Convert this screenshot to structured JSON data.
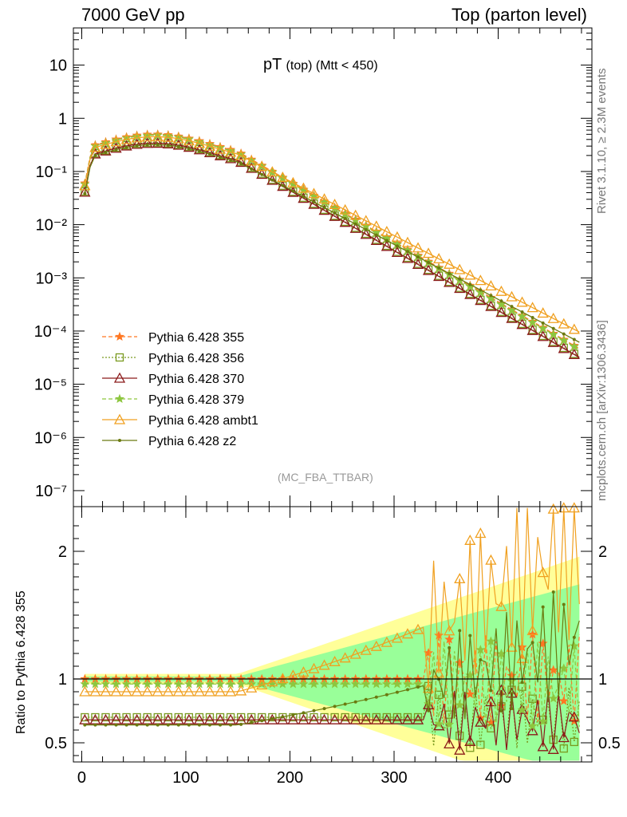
{
  "header": {
    "left": "7000 GeV pp",
    "right": "Top (parton level)",
    "side_top": "Rivet 3.1.10, ≥ 2.3M events",
    "side_bottom": "mcplots.cern.ch [arXiv:1306.3436]"
  },
  "chart_data": {
    "type": "line",
    "title_main": "pT",
    "title_sub": "(top) (Mtt < 450)",
    "analysis": "(MC_FBA_TTBAR)",
    "xlabel": "",
    "ylabel": "",
    "xlim": [
      -8,
      490
    ],
    "ylim": [
      5e-08,
      50
    ],
    "yscale": "log",
    "grid": false,
    "legend_position": "bottom-left",
    "x_ticks": [
      0,
      100,
      200,
      300,
      400
    ],
    "y_ticks": [
      "10",
      "1",
      "10^-1",
      "10^-2",
      "10^-3",
      "10^-4",
      "10^-5",
      "10^-6",
      "10^-7"
    ],
    "ratio": {
      "ylabel": "Ratio to Pythia 6.428 355",
      "ylim": [
        0.35,
        2.35
      ],
      "y_ticks": [
        "0.5",
        "1",
        "2"
      ]
    },
    "bands": {
      "yellow_color": "#ffff99",
      "green_color": "#99ff99"
    },
    "series": [
      {
        "name": "Pythia 6.428 355",
        "color": "#ff7722",
        "marker": "star",
        "dash": "5,3",
        "peak": 0.5,
        "tail_break": 150,
        "tail_slope": 0.026,
        "tail_end": 1.5e-05
      },
      {
        "name": "Pythia 6.428 356",
        "color": "#7a9a20",
        "marker": "square",
        "dash": "2,2",
        "peak": 0.35,
        "tail_break": 150,
        "tail_slope": 0.026,
        "tail_end": 1.8e-05
      },
      {
        "name": "Pythia 6.428 370",
        "color": "#8b1a1a",
        "marker": "triangle",
        "dash": "",
        "peak": 0.34,
        "tail_break": 150,
        "tail_slope": 0.026,
        "tail_end": 1e-05
      },
      {
        "name": "Pythia 6.428 379",
        "color": "#8dc63f",
        "marker": "star",
        "dash": "5,3",
        "peak": 0.48,
        "tail_break": 150,
        "tail_slope": 0.026,
        "tail_end": 2e-05
      },
      {
        "name": "Pythia 6.428 ambt1",
        "color": "#f0a020",
        "marker": "triangle",
        "dash": "",
        "peak": 0.45,
        "tail_break": 150,
        "tail_slope": 0.0235,
        "tail_end": 6e-05
      },
      {
        "name": "Pythia 6.428 z2",
        "color": "#6b7a10",
        "marker": "dot",
        "dash": "",
        "peak": 0.32,
        "tail_break": 150,
        "tail_slope": 0.0238,
        "tail_end": 3e-05
      }
    ]
  }
}
